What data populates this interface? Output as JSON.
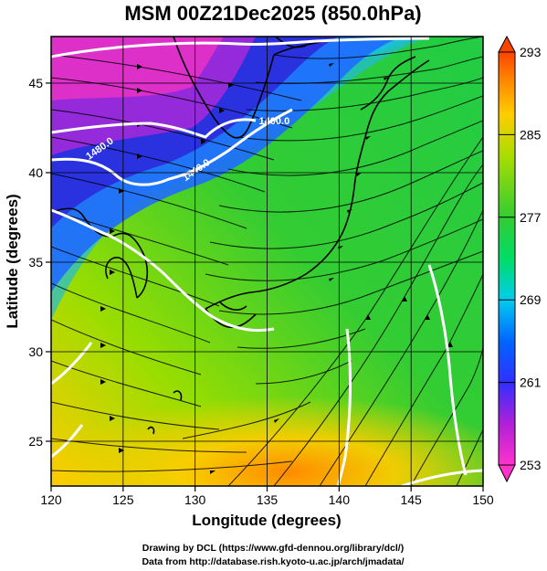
{
  "chart_data": {
    "type": "heatmap",
    "title": "MSM 00Z21Dec2025 (850.0hPa)",
    "xlabel": "Longitude (degrees)",
    "ylabel": "Latitude  (degrees)",
    "xlim": [
      120,
      150
    ],
    "ylim": [
      22.5,
      47.6
    ],
    "x_ticks": [
      120,
      125,
      130,
      135,
      140,
      145,
      150
    ],
    "y_ticks": [
      25,
      30,
      35,
      40,
      45
    ],
    "grid": true,
    "colorbar": {
      "ticks": [
        253,
        261,
        269,
        277,
        285,
        293
      ],
      "range": [
        253,
        293
      ],
      "colors": [
        "#ff33cc",
        "#b020d8",
        "#3030ff",
        "#0066ff",
        "#00ccee",
        "#00dd66",
        "#33cc33",
        "#aadd00",
        "#ffcc00",
        "#ff8800",
        "#ff4400"
      ]
    },
    "contours": [
      {
        "label": "1400.0",
        "lon": 135.5,
        "lat": 42.7
      },
      {
        "label": "1440.0",
        "lon": 130.2,
        "lat": 40.0
      },
      {
        "label": "1480.0",
        "lon": 123.5,
        "lat": 41.2
      }
    ]
  },
  "credits": {
    "line1": "Drawing by DCL (https://www.gfd-dennou.org/library/dcl/)",
    "line2": "Data from http://database.rish.kyoto-u.ac.jp/arch/jmadata/"
  }
}
